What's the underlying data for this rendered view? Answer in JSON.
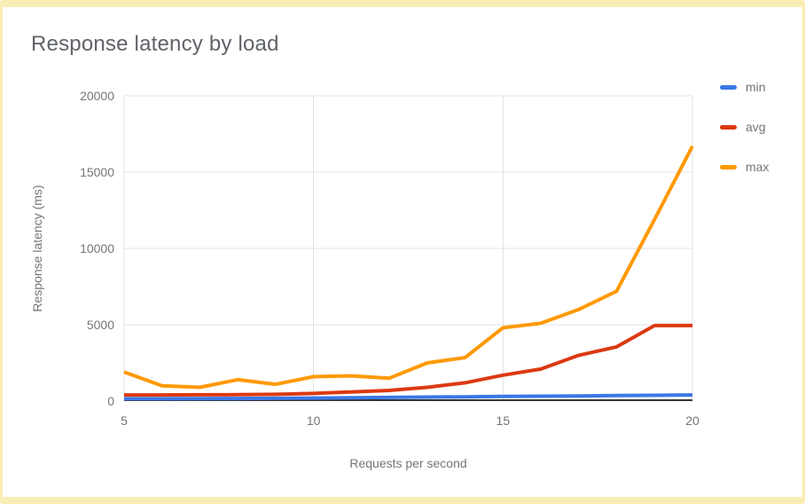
{
  "card": {
    "border_color": "#faedb5",
    "background": "#ffffff"
  },
  "title": "Response latency by load",
  "chart_data": {
    "type": "line",
    "title": "Response latency by load",
    "xlabel": "Requests per second",
    "ylabel": "Response latency (ms)",
    "x": [
      5,
      6,
      7,
      8,
      9,
      10,
      11,
      12,
      13,
      14,
      15,
      16,
      17,
      18,
      19,
      20
    ],
    "series": [
      {
        "name": "min",
        "color": "#3b78e7",
        "values": [
          150,
          150,
          160,
          170,
          180,
          200,
          220,
          240,
          260,
          280,
          300,
          320,
          340,
          360,
          380,
          400
        ]
      },
      {
        "name": "avg",
        "color": "#dc3912",
        "values": [
          400,
          400,
          410,
          420,
          440,
          500,
          600,
          700,
          900,
          1200,
          1700,
          2100,
          3000,
          3550,
          4950,
          4950
        ]
      },
      {
        "name": "max",
        "color": "#ff9900",
        "values": [
          1900,
          1000,
          900,
          1400,
          1100,
          1600,
          1650,
          1500,
          2500,
          2850,
          4800,
          5100,
          6000,
          7200,
          11900,
          16700
        ]
      }
    ],
    "xlim": [
      5,
      20
    ],
    "ylim": [
      0,
      20000
    ],
    "x_ticks": [
      5,
      10,
      15,
      20
    ],
    "y_ticks": [
      0,
      5000,
      10000,
      15000,
      20000
    ],
    "grid": true,
    "legend_position": "right",
    "gridline_color": "#e3e3e3",
    "baseline_color": "#333333",
    "line_width": 4
  }
}
